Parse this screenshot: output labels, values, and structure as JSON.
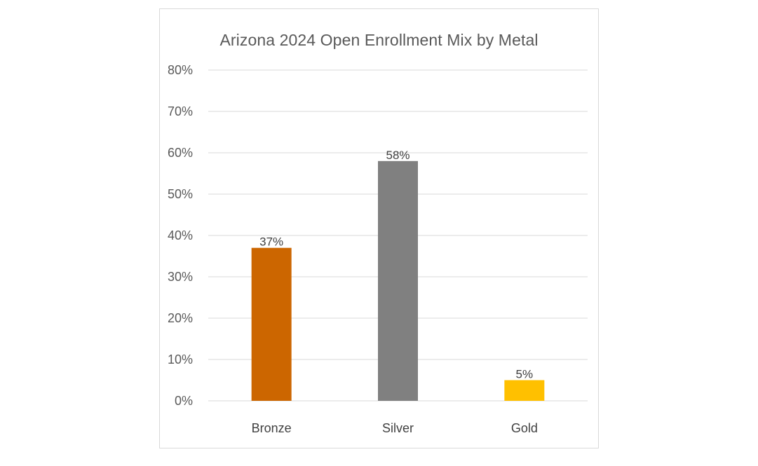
{
  "chart_data": {
    "type": "bar",
    "title": "Arizona 2024 Open Enrollment Mix by Metal",
    "xlabel": "",
    "ylabel": "",
    "categories": [
      "Bronze",
      "Silver",
      "Gold"
    ],
    "values": [
      37,
      58,
      5
    ],
    "data_labels": [
      "37%",
      "58%",
      "5%"
    ],
    "colors": [
      "#cc6600",
      "#808080",
      "#ffc000"
    ],
    "ylim": [
      0,
      80
    ],
    "yticks": [
      0,
      10,
      20,
      30,
      40,
      50,
      60,
      70,
      80
    ],
    "ytick_labels": [
      "0%",
      "10%",
      "20%",
      "30%",
      "40%",
      "50%",
      "60%",
      "70%",
      "80%"
    ],
    "grid": true,
    "legend": "none"
  },
  "colors": {
    "gridline": "#d9d9d9",
    "title": "#595959"
  }
}
